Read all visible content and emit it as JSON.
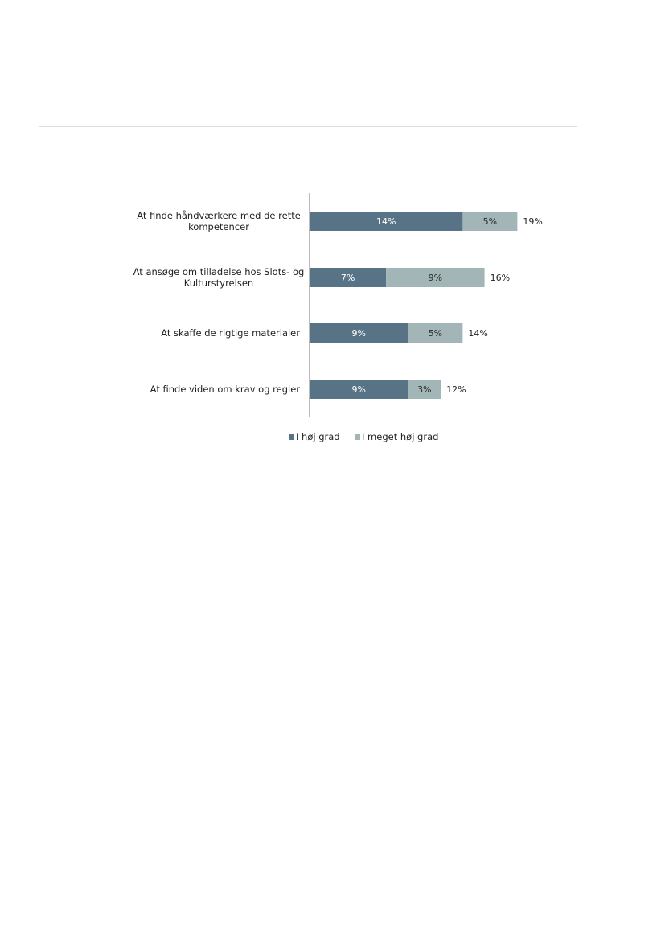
{
  "chart_data": {
    "type": "bar",
    "orientation": "horizontal",
    "stacked": true,
    "title": "",
    "xlabel": "",
    "ylabel": "",
    "xlim": [
      0,
      20
    ],
    "grid": false,
    "legend_position": "bottom",
    "categories": [
      [
        "At finde håndværkere med de rette",
        "kompetencer"
      ],
      [
        "At ansøge om tilladelse hos Slots- og",
        "Kulturstyrelsen"
      ],
      [
        "At skaffe de rigtige materialer"
      ],
      [
        "At finde viden om krav og regler"
      ]
    ],
    "series": [
      {
        "name": "I høj grad",
        "color": "#587385",
        "values": [
          14,
          7,
          9,
          9
        ],
        "labels": [
          "14%",
          "7%",
          "9%",
          "9%"
        ]
      },
      {
        "name": "I meget høj grad",
        "color": "#a3b6b7",
        "values": [
          5,
          9,
          5,
          3
        ],
        "labels": [
          "5%",
          "9%",
          "5%",
          "3%"
        ]
      }
    ],
    "totals": [
      19,
      16,
      14,
      12
    ],
    "total_labels": [
      "19%",
      "16%",
      "14%",
      "12%"
    ]
  }
}
